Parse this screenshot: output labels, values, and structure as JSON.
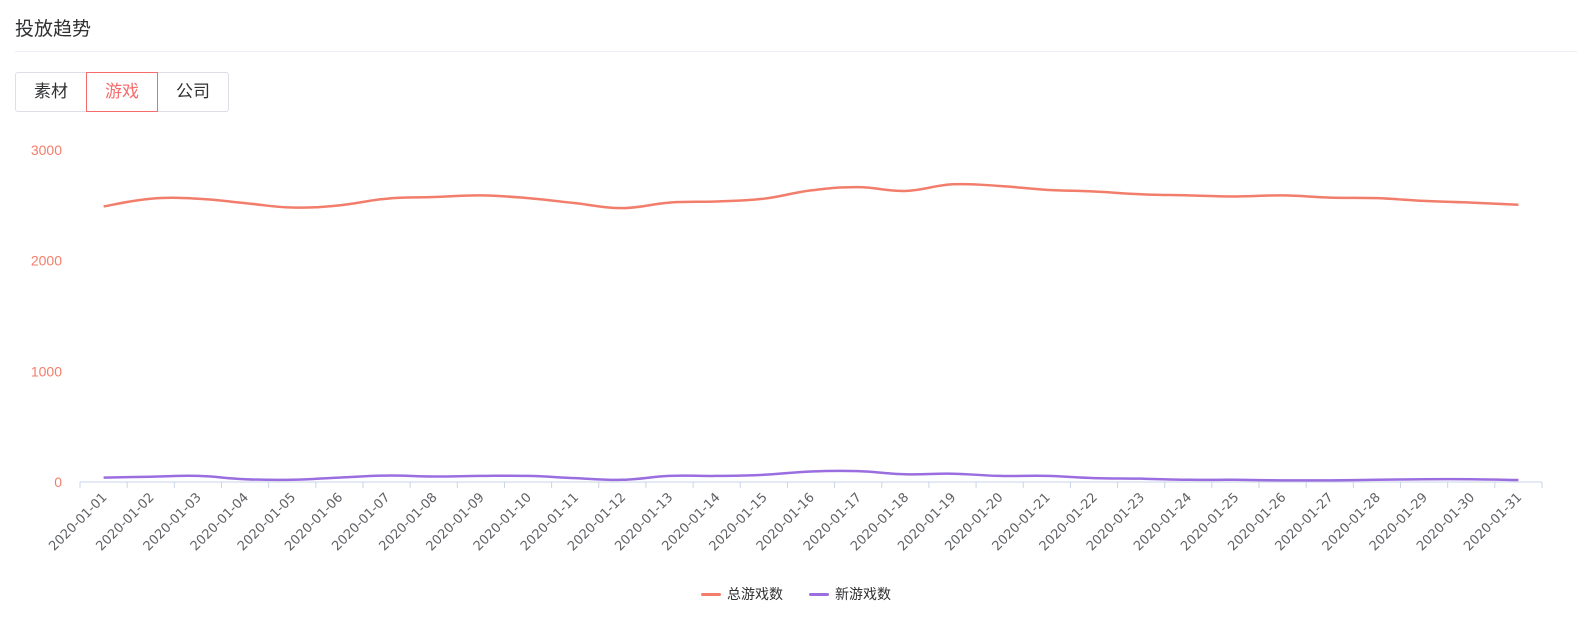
{
  "section": {
    "title": "投放趋势"
  },
  "tabs": [
    {
      "label": "素材",
      "active": false
    },
    {
      "label": "游戏",
      "active": true
    },
    {
      "label": "公司",
      "active": false
    }
  ],
  "colors": {
    "accent": "#f56c6c",
    "series_total": "#f27d6b",
    "series_new": "#9b6ee0",
    "axis": "#c9d4e8"
  },
  "chart_data": {
    "type": "line",
    "title": "",
    "xlabel": "",
    "ylabel": "",
    "ylim": [
      0,
      3000
    ],
    "yticks": [
      "0",
      "1000",
      "2000",
      "3000"
    ],
    "grid": false,
    "legend_position": "bottom-center",
    "x": [
      "2020-01-01",
      "2020-01-02",
      "2020-01-03",
      "2020-01-04",
      "2020-01-05",
      "2020-01-06",
      "2020-01-07",
      "2020-01-08",
      "2020-01-09",
      "2020-01-10",
      "2020-01-11",
      "2020-01-12",
      "2020-01-13",
      "2020-01-14",
      "2020-01-15",
      "2020-01-16",
      "2020-01-17",
      "2020-01-18",
      "2020-01-19",
      "2020-01-20",
      "2020-01-21",
      "2020-01-22",
      "2020-01-23",
      "2020-01-24",
      "2020-01-25",
      "2020-01-26",
      "2020-01-27",
      "2020-01-28",
      "2020-01-29",
      "2020-01-30",
      "2020-01-31"
    ],
    "series": [
      {
        "name": "总游戏数",
        "values": [
          2490,
          2560,
          2560,
          2520,
          2480,
          2500,
          2560,
          2575,
          2590,
          2565,
          2520,
          2475,
          2525,
          2535,
          2560,
          2635,
          2665,
          2630,
          2690,
          2675,
          2640,
          2625,
          2600,
          2590,
          2580,
          2590,
          2570,
          2565,
          2540,
          2525,
          2505
        ]
      },
      {
        "name": "新游戏数",
        "values": [
          40,
          48,
          55,
          25,
          20,
          40,
          58,
          50,
          55,
          55,
          35,
          20,
          55,
          55,
          65,
          95,
          98,
          70,
          75,
          55,
          55,
          35,
          30,
          20,
          20,
          15,
          15,
          20,
          25,
          25,
          18
        ]
      }
    ]
  }
}
